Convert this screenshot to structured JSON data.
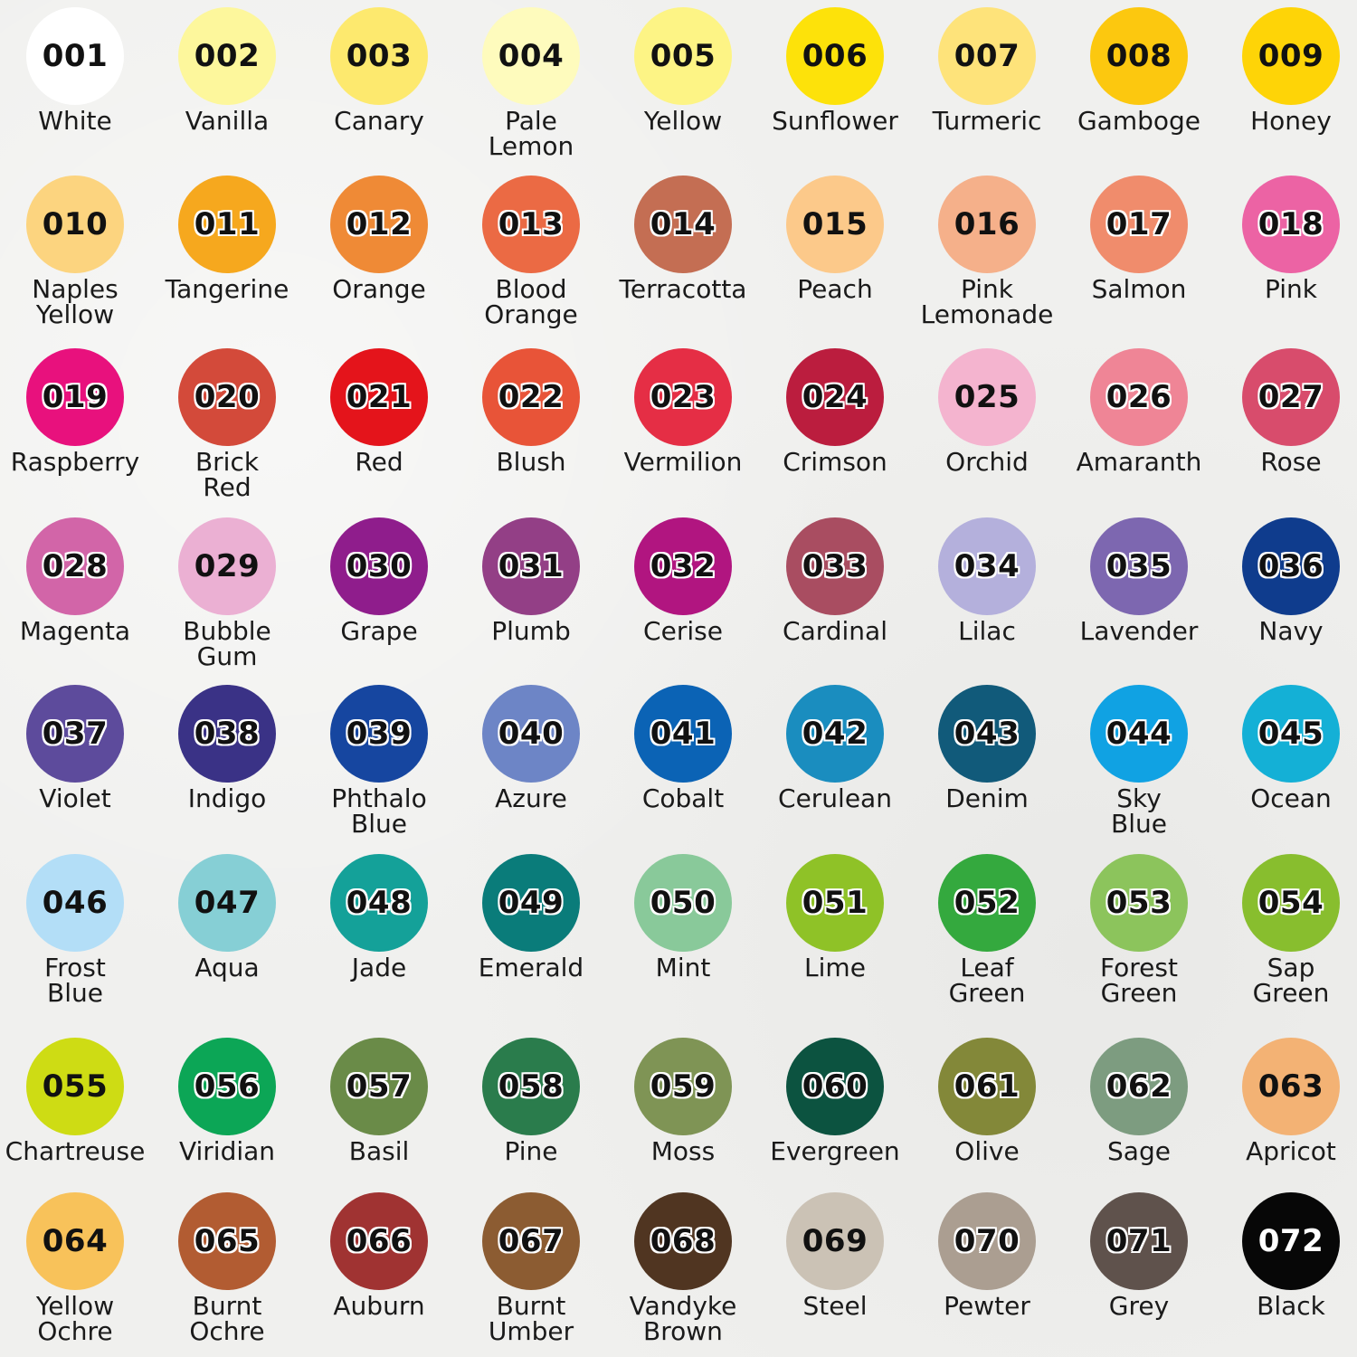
{
  "swatches": [
    {
      "number": "001",
      "name": "White",
      "color": "#ffffff"
    },
    {
      "number": "002",
      "name": "Vanilla",
      "color": "#fdf79c"
    },
    {
      "number": "003",
      "name": "Canary",
      "color": "#fde96e"
    },
    {
      "number": "004",
      "name": "Pale\nLemon",
      "color": "#fefbbd"
    },
    {
      "number": "005",
      "name": "Yellow",
      "color": "#fdf485"
    },
    {
      "number": "006",
      "name": "Sunflower",
      "color": "#fde20a"
    },
    {
      "number": "007",
      "name": "Turmeric",
      "color": "#fee37a"
    },
    {
      "number": "008",
      "name": "Gamboge",
      "color": "#fcc80f"
    },
    {
      "number": "009",
      "name": "Honey",
      "color": "#fed407"
    },
    {
      "number": "010",
      "name": "Naples\nYellow",
      "color": "#fcd47f"
    },
    {
      "number": "011",
      "name": "Tangerine",
      "color": "#f6a81e"
    },
    {
      "number": "012",
      "name": "Orange",
      "color": "#ef8a36"
    },
    {
      "number": "013",
      "name": "Blood\nOrange",
      "color": "#eb6a44"
    },
    {
      "number": "014",
      "name": "Terracotta",
      "color": "#c46e53"
    },
    {
      "number": "015",
      "name": "Peach",
      "color": "#fcc98a"
    },
    {
      "number": "016",
      "name": "Pink\nLemonade",
      "color": "#f5b08a"
    },
    {
      "number": "017",
      "name": "Salmon",
      "color": "#f08c6c"
    },
    {
      "number": "018",
      "name": "Pink",
      "color": "#ec63a4"
    },
    {
      "number": "019",
      "name": "Raspberry",
      "color": "#e8117d"
    },
    {
      "number": "020",
      "name": "Brick\nRed",
      "color": "#d34a3a"
    },
    {
      "number": "021",
      "name": "Red",
      "color": "#e4141b"
    },
    {
      "number": "022",
      "name": "Blush",
      "color": "#e85438"
    },
    {
      "number": "023",
      "name": "Vermilion",
      "color": "#e52e45"
    },
    {
      "number": "024",
      "name": "Crimson",
      "color": "#bb1d3e"
    },
    {
      "number": "025",
      "name": "Orchid",
      "color": "#f4b4cf"
    },
    {
      "number": "026",
      "name": "Amaranth",
      "color": "#ef8596"
    },
    {
      "number": "027",
      "name": "Rose",
      "color": "#d84c6c"
    },
    {
      "number": "028",
      "name": "Magenta",
      "color": "#d265a8"
    },
    {
      "number": "029",
      "name": "Bubble\nGum",
      "color": "#ebb0d3"
    },
    {
      "number": "030",
      "name": "Grape",
      "color": "#8f1d8c"
    },
    {
      "number": "031",
      "name": "Plumb",
      "color": "#933f86"
    },
    {
      "number": "032",
      "name": "Cerise",
      "color": "#b11580"
    },
    {
      "number": "033",
      "name": "Cardinal",
      "color": "#a94d61"
    },
    {
      "number": "034",
      "name": "Lilac",
      "color": "#b4b0dc"
    },
    {
      "number": "035",
      "name": "Lavender",
      "color": "#7d67b0"
    },
    {
      "number": "036",
      "name": "Navy",
      "color": "#0f3c8d"
    },
    {
      "number": "037",
      "name": "Violet",
      "color": "#5d4b9c"
    },
    {
      "number": "038",
      "name": "Indigo",
      "color": "#3a3286"
    },
    {
      "number": "039",
      "name": "Phthalo\nBlue",
      "color": "#1646a0"
    },
    {
      "number": "040",
      "name": "Azure",
      "color": "#6d85c6"
    },
    {
      "number": "041",
      "name": "Cobalt",
      "color": "#0b63b5"
    },
    {
      "number": "042",
      "name": "Cerulean",
      "color": "#1a8dbf"
    },
    {
      "number": "043",
      "name": "Denim",
      "color": "#115a7a"
    },
    {
      "number": "044",
      "name": "Sky\nBlue",
      "color": "#10a2e3"
    },
    {
      "number": "045",
      "name": "Ocean",
      "color": "#14b0d6"
    },
    {
      "number": "046",
      "name": "Frost\nBlue",
      "color": "#b3def7"
    },
    {
      "number": "047",
      "name": "Aqua",
      "color": "#86cfd5"
    },
    {
      "number": "048",
      "name": "Jade",
      "color": "#14a199"
    },
    {
      "number": "049",
      "name": "Emerald",
      "color": "#0a7c7a"
    },
    {
      "number": "050",
      "name": "Mint",
      "color": "#89c99a"
    },
    {
      "number": "051",
      "name": "Lime",
      "color": "#8fc227"
    },
    {
      "number": "052",
      "name": "Leaf\nGreen",
      "color": "#34a93e"
    },
    {
      "number": "053",
      "name": "Forest\nGreen",
      "color": "#8cc45c"
    },
    {
      "number": "054",
      "name": "Sap\nGreen",
      "color": "#88be2e"
    },
    {
      "number": "055",
      "name": "Chartreuse",
      "color": "#cedc14"
    },
    {
      "number": "056",
      "name": "Viridian",
      "color": "#0ca656"
    },
    {
      "number": "057",
      "name": "Basil",
      "color": "#6a8b48"
    },
    {
      "number": "058",
      "name": "Pine",
      "color": "#2a7c4c"
    },
    {
      "number": "059",
      "name": "Moss",
      "color": "#7f9455"
    },
    {
      "number": "060",
      "name": "Evergreen",
      "color": "#0c5340"
    },
    {
      "number": "061",
      "name": "Olive",
      "color": "#838839"
    },
    {
      "number": "062",
      "name": "Sage",
      "color": "#7d9c80"
    },
    {
      "number": "063",
      "name": "Apricot",
      "color": "#f3b274"
    },
    {
      "number": "064",
      "name": "Yellow\nOchre",
      "color": "#f8c25a"
    },
    {
      "number": "065",
      "name": "Burnt\nOchre",
      "color": "#b25c32"
    },
    {
      "number": "066",
      "name": "Auburn",
      "color": "#a03332"
    },
    {
      "number": "067",
      "name": "Burnt\nUmber",
      "color": "#8c5c32"
    },
    {
      "number": "068",
      "name": "Vandyke\nBrown",
      "color": "#503521"
    },
    {
      "number": "069",
      "name": "Steel",
      "color": "#cbc2b5"
    },
    {
      "number": "070",
      "name": "Pewter",
      "color": "#ab9e91"
    },
    {
      "number": "071",
      "name": "Grey",
      "color": "#5f524c"
    },
    {
      "number": "072",
      "name": "Black",
      "color": "#070707"
    }
  ]
}
